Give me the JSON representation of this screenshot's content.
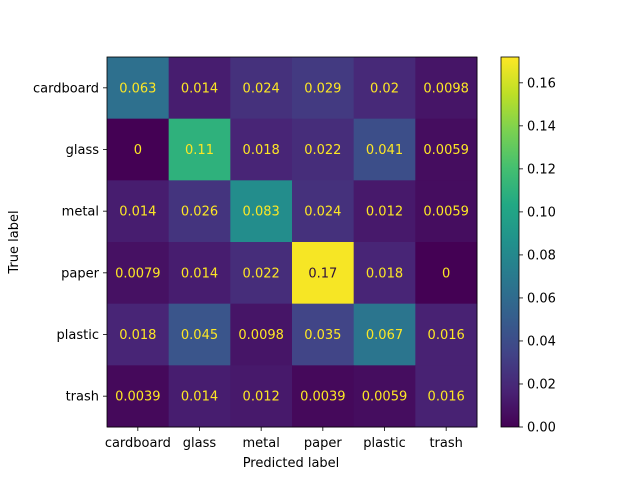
{
  "chart_data": {
    "type": "heatmap",
    "title": "",
    "xlabel": "Predicted label",
    "ylabel": "True label",
    "x_categories": [
      "cardboard",
      "glass",
      "metal",
      "paper",
      "plastic",
      "trash"
    ],
    "y_categories": [
      "cardboard",
      "glass",
      "metal",
      "paper",
      "plastic",
      "trash"
    ],
    "values": [
      [
        0.063,
        0.014,
        0.024,
        0.029,
        0.02,
        0.0098
      ],
      [
        0,
        0.11,
        0.018,
        0.022,
        0.041,
        0.0059
      ],
      [
        0.014,
        0.026,
        0.083,
        0.024,
        0.012,
        0.0059
      ],
      [
        0.0079,
        0.014,
        0.022,
        0.17,
        0.018,
        0
      ],
      [
        0.018,
        0.045,
        0.0098,
        0.035,
        0.067,
        0.016
      ],
      [
        0.0039,
        0.014,
        0.012,
        0.0039,
        0.0059,
        0.016
      ]
    ],
    "colormap": "viridis",
    "colorbar": {
      "range": [
        0,
        0.172
      ],
      "ticks": [
        0.0,
        0.02,
        0.04,
        0.06,
        0.08,
        0.1,
        0.12,
        0.14,
        0.16
      ],
      "tick_labels": [
        "0.00",
        "0.02",
        "0.04",
        "0.06",
        "0.08",
        "0.10",
        "0.12",
        "0.14",
        "0.16"
      ]
    },
    "grid": false
  }
}
